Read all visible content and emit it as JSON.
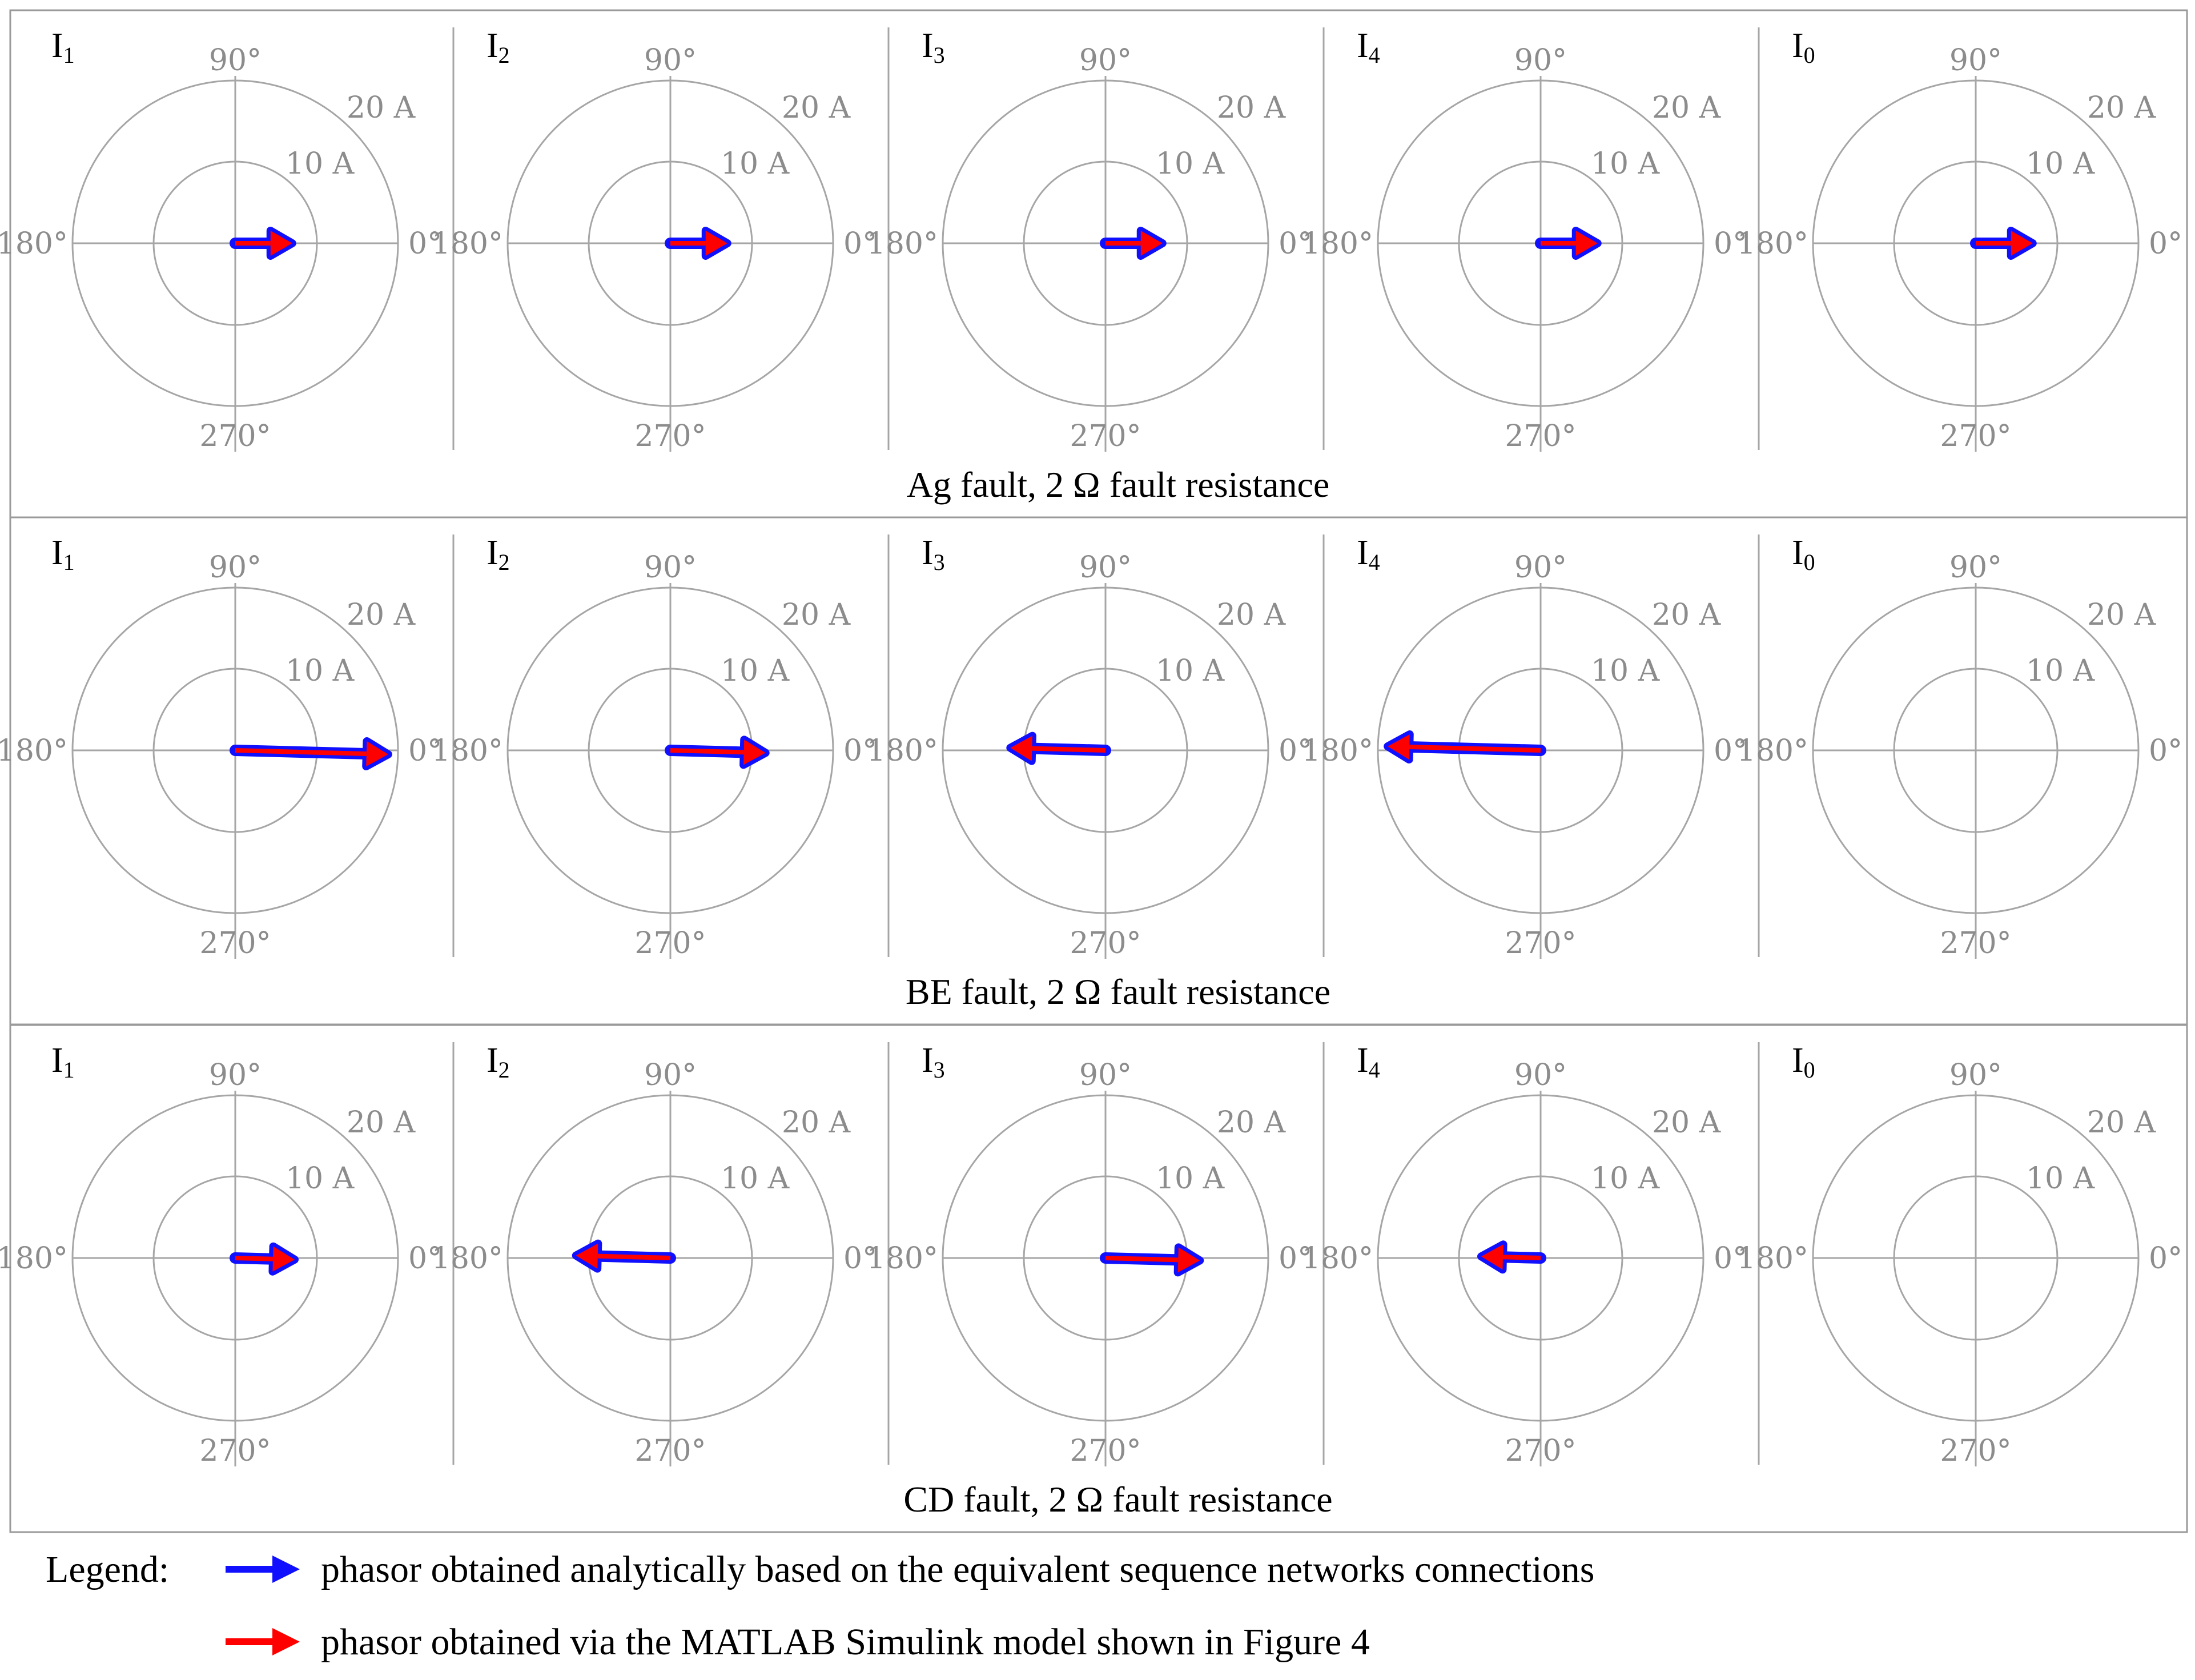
{
  "colors": {
    "analytical": "#1010ff",
    "simulink": "#ff0000",
    "grid": "#a6a6a6",
    "label": "#8c8c8c",
    "border": "#9a9a9a"
  },
  "polar_labels": {
    "deg_0": "0°",
    "deg_90": "90°",
    "deg_180": "180°",
    "deg_270": "270°",
    "ring_inner": "10 A",
    "ring_outer": "20 A"
  },
  "rows": [
    {
      "caption": "Ag fault, 2 Ω fault resistance",
      "panels": [
        {
          "title": "I",
          "sub": "1",
          "magnitude": 7.0,
          "angle_deg": 0
        },
        {
          "title": "I",
          "sub": "2",
          "magnitude": 7.0,
          "angle_deg": 0
        },
        {
          "title": "I",
          "sub": "3",
          "magnitude": 7.0,
          "angle_deg": 0
        },
        {
          "title": "I",
          "sub": "4",
          "magnitude": 7.0,
          "angle_deg": 0
        },
        {
          "title": "I",
          "sub": "0",
          "magnitude": 7.0,
          "angle_deg": 0
        }
      ]
    },
    {
      "caption": "BE fault, 2 Ω fault resistance",
      "panels": [
        {
          "title": "I",
          "sub": "1",
          "magnitude": 18.8,
          "angle_deg": -1.5
        },
        {
          "title": "I",
          "sub": "2",
          "magnitude": 11.7,
          "angle_deg": -1.5
        },
        {
          "title": "I",
          "sub": "3",
          "magnitude": 11.7,
          "angle_deg": 178.5
        },
        {
          "title": "I",
          "sub": "4",
          "magnitude": 18.8,
          "angle_deg": 178.5
        },
        {
          "title": "I",
          "sub": "0",
          "magnitude": 0,
          "angle_deg": 0
        }
      ]
    },
    {
      "caption": "CD fault, 2 Ω fault resistance",
      "panels": [
        {
          "title": "I",
          "sub": "1",
          "magnitude": 7.3,
          "angle_deg": -1.5
        },
        {
          "title": "I",
          "sub": "2",
          "magnitude": 11.6,
          "angle_deg": 178.5
        },
        {
          "title": "I",
          "sub": "3",
          "magnitude": 11.6,
          "angle_deg": -1.5
        },
        {
          "title": "I",
          "sub": "4",
          "magnitude": 7.3,
          "angle_deg": 178.5
        },
        {
          "title": "I",
          "sub": "0",
          "magnitude": 0,
          "angle_deg": 0
        }
      ]
    }
  ],
  "legend": {
    "label": "Legend:",
    "items": [
      {
        "color": "#1010ff",
        "text": "phasor obtained analytically based on the equivalent sequence networks connections"
      },
      {
        "color": "#ff0000",
        "text": "phasor obtained via the MATLAB Simulink model shown in Figure 4"
      }
    ]
  }
}
